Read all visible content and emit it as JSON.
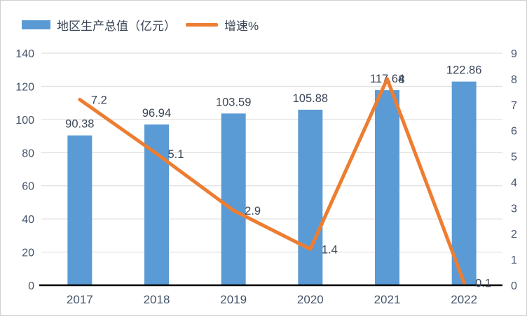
{
  "chart_data": {
    "type": "combo-bar-line",
    "title": "",
    "categories": [
      "2017",
      "2018",
      "2019",
      "2020",
      "2021",
      "2022"
    ],
    "series": [
      {
        "name": "地区生产总值（亿元）",
        "type": "bar",
        "axis": "left",
        "values": [
          90.38,
          96.94,
          103.59,
          105.88,
          117.64,
          122.86
        ],
        "labels": [
          "90.38",
          "96.94",
          "103.59",
          "105.88",
          "117.64",
          "122.86"
        ],
        "color": "#5B9BD5"
      },
      {
        "name": "增速%",
        "type": "line",
        "axis": "right",
        "values": [
          7.2,
          5.1,
          2.9,
          1.4,
          8,
          0.1
        ],
        "labels": [
          "7.2",
          "5.1",
          "2.9",
          "1.4",
          "8",
          "0.1"
        ],
        "color": "#ED7D31"
      }
    ],
    "left_axis": {
      "min": 0,
      "max": 140,
      "step": 20,
      "tick_labels": [
        "0",
        "20",
        "40",
        "60",
        "80",
        "100",
        "120",
        "140"
      ]
    },
    "right_axis": {
      "min": 0,
      "max": 9,
      "step": 1,
      "tick_labels": [
        "0",
        "1",
        "2",
        "3",
        "4",
        "5",
        "6",
        "7",
        "8",
        "9"
      ]
    },
    "grid": true,
    "legend_position": "top-left",
    "colors": {
      "gridline": "#D9D9D9",
      "axis_line": "#000000",
      "tick_label": "#44546A",
      "data_label": "#3B4656"
    }
  }
}
